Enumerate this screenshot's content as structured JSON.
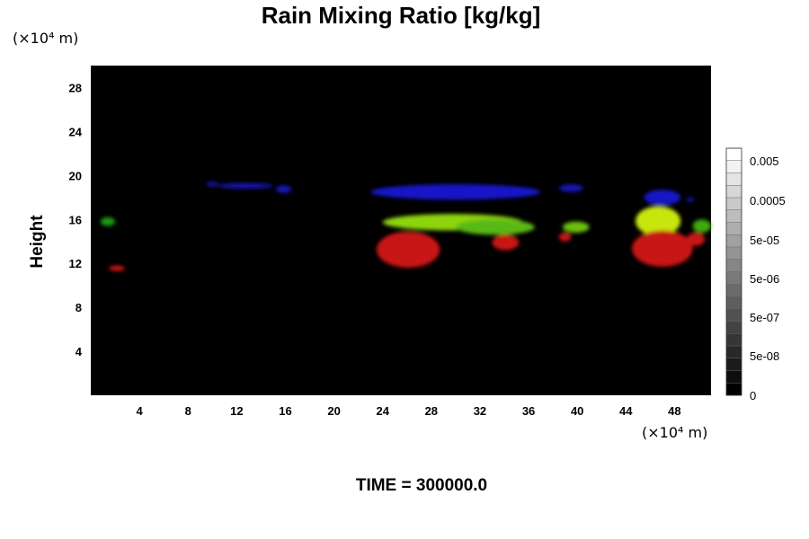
{
  "chart_data": {
    "type": "heatmap",
    "title": "Rain Mixing Ratio [kg/kg]",
    "ylabel": "Height",
    "y_unit_label": "(×10⁴ m)",
    "x_unit_label": "(×10⁴ m)",
    "xlim": [
      0,
      51
    ],
    "ylim": [
      0,
      30
    ],
    "x_ticks": [
      4,
      8,
      12,
      16,
      20,
      24,
      28,
      32,
      36,
      40,
      44,
      48
    ],
    "y_ticks": [
      4,
      8,
      12,
      16,
      20,
      24,
      28
    ],
    "footer": "TIME = 300000.0",
    "colorbar": {
      "labels": [
        "0.005",
        "0.0005",
        "5e-05",
        "5e-06",
        "5e-07",
        "5e-08",
        "0"
      ],
      "label_values": [
        0.005,
        0.0005,
        5e-05,
        5e-06,
        5e-07,
        5e-08,
        0
      ],
      "levels": 20,
      "colors": [
        "#000000",
        "#ffffff"
      ]
    },
    "features": [
      {
        "color": "#1414b4",
        "x": [
          9.5,
          10.5
        ],
        "y": [
          19.0,
          19.4
        ]
      },
      {
        "color": "#1414b4",
        "x": [
          10.5,
          15
        ],
        "y": [
          18.8,
          19.3
        ]
      },
      {
        "color": "#1414b4",
        "x": [
          15.2,
          16.5
        ],
        "y": [
          18.4,
          19.1
        ]
      },
      {
        "color": "#1818c8",
        "x": [
          23,
          37
        ],
        "y": [
          17.8,
          19.2
        ]
      },
      {
        "color": "#1414b4",
        "x": [
          38.5,
          40.5
        ],
        "y": [
          18.5,
          19.2
        ]
      },
      {
        "color": "#1818c8",
        "x": [
          45.5,
          48.5
        ],
        "y": [
          17.3,
          18.7
        ]
      },
      {
        "color": "#1414b4",
        "x": [
          49.0,
          49.6
        ],
        "y": [
          17.6,
          18.0
        ]
      },
      {
        "color": "#1e9a12",
        "x": [
          0.8,
          2.0
        ],
        "y": [
          15.4,
          16.2
        ]
      },
      {
        "color": "#8ed40e",
        "x": [
          24,
          35.5
        ],
        "y": [
          15.0,
          16.5
        ]
      },
      {
        "color": "#5ab812",
        "x": [
          30,
          36.5
        ],
        "y": [
          14.6,
          16.0
        ]
      },
      {
        "color": "#6cc010",
        "x": [
          38.8,
          41
        ],
        "y": [
          14.8,
          15.8
        ]
      },
      {
        "color": "#c8e60c",
        "x": [
          44.8,
          48.5
        ],
        "y": [
          14.5,
          17.2
        ]
      },
      {
        "color": "#40aa10",
        "x": [
          49.5,
          51
        ],
        "y": [
          14.8,
          16.0
        ]
      },
      {
        "color": "#c81414",
        "x": [
          1.5,
          2.8
        ],
        "y": [
          11.3,
          11.8
        ]
      },
      {
        "color": "#c81414",
        "x": [
          23.5,
          28.7
        ],
        "y": [
          11.6,
          14.9
        ]
      },
      {
        "color": "#c81414",
        "x": [
          33,
          35.2
        ],
        "y": [
          13.2,
          14.6
        ]
      },
      {
        "color": "#c81414",
        "x": [
          38.5,
          39.5
        ],
        "y": [
          14.0,
          14.8
        ]
      },
      {
        "color": "#c81414",
        "x": [
          44.5,
          49.5
        ],
        "y": [
          11.7,
          15.0
        ]
      },
      {
        "color": "#c81414",
        "x": [
          49,
          50.5
        ],
        "y": [
          13.6,
          14.8
        ]
      }
    ]
  }
}
